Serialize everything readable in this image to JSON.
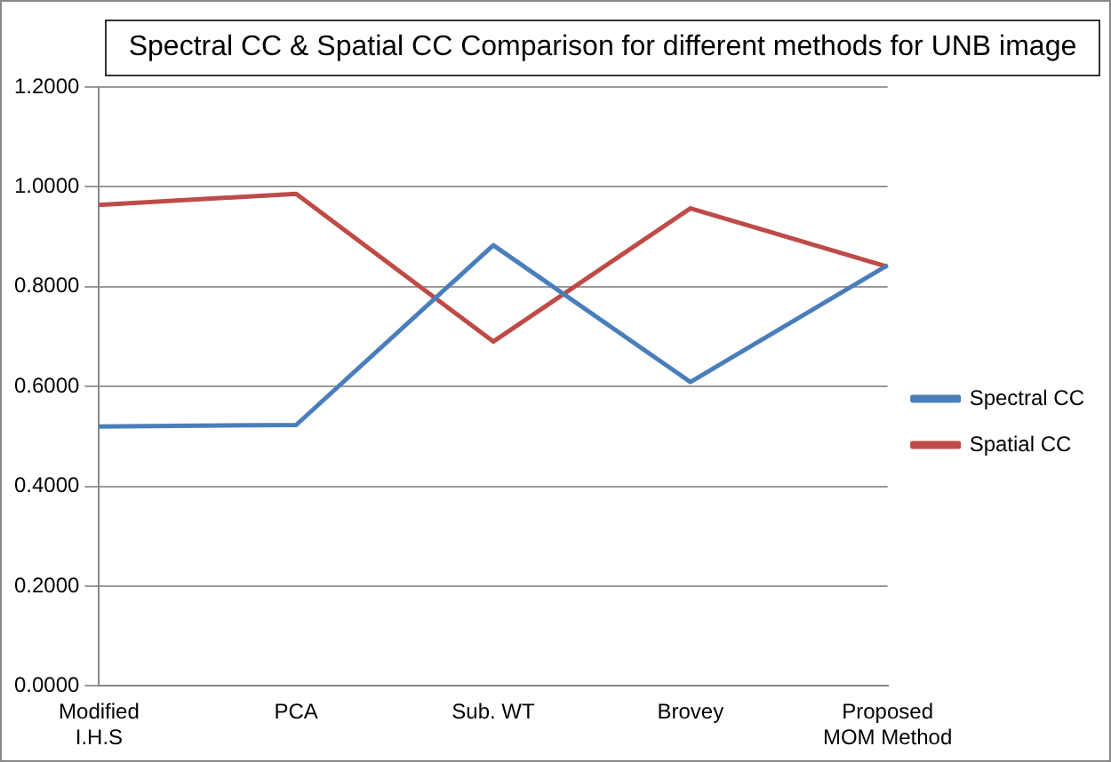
{
  "chart_data": {
    "type": "line",
    "title": "Spectral CC & Spatial CC Comparison for different methods for UNB image",
    "categories": [
      "Modified I.H.S",
      "PCA",
      "Sub. WT",
      "Brovey",
      "Proposed MOM Method"
    ],
    "series": [
      {
        "name": "Spectral CC",
        "color": "#4a7ebb",
        "values": [
          0.52,
          0.523,
          0.883,
          0.609,
          0.843
        ]
      },
      {
        "name": "Spatial CC",
        "color": "#be4b48",
        "values": [
          0.964,
          0.986,
          0.69,
          0.957,
          0.84
        ]
      }
    ],
    "ylim": [
      0,
      1.2
    ],
    "yticks": [
      {
        "value": 0,
        "label": "0.0000"
      },
      {
        "value": 0.2,
        "label": "0.2000"
      },
      {
        "value": 0.4,
        "label": "0.4000"
      },
      {
        "value": 0.6,
        "label": "0.6000"
      },
      {
        "value": 0.8,
        "label": "0.8000"
      },
      {
        "value": 1.0,
        "label": "1.0000"
      },
      {
        "value": 1.2,
        "label": "1.2000"
      }
    ],
    "grid": "y",
    "legend": "right",
    "marker": "none",
    "line_style": "solid"
  }
}
